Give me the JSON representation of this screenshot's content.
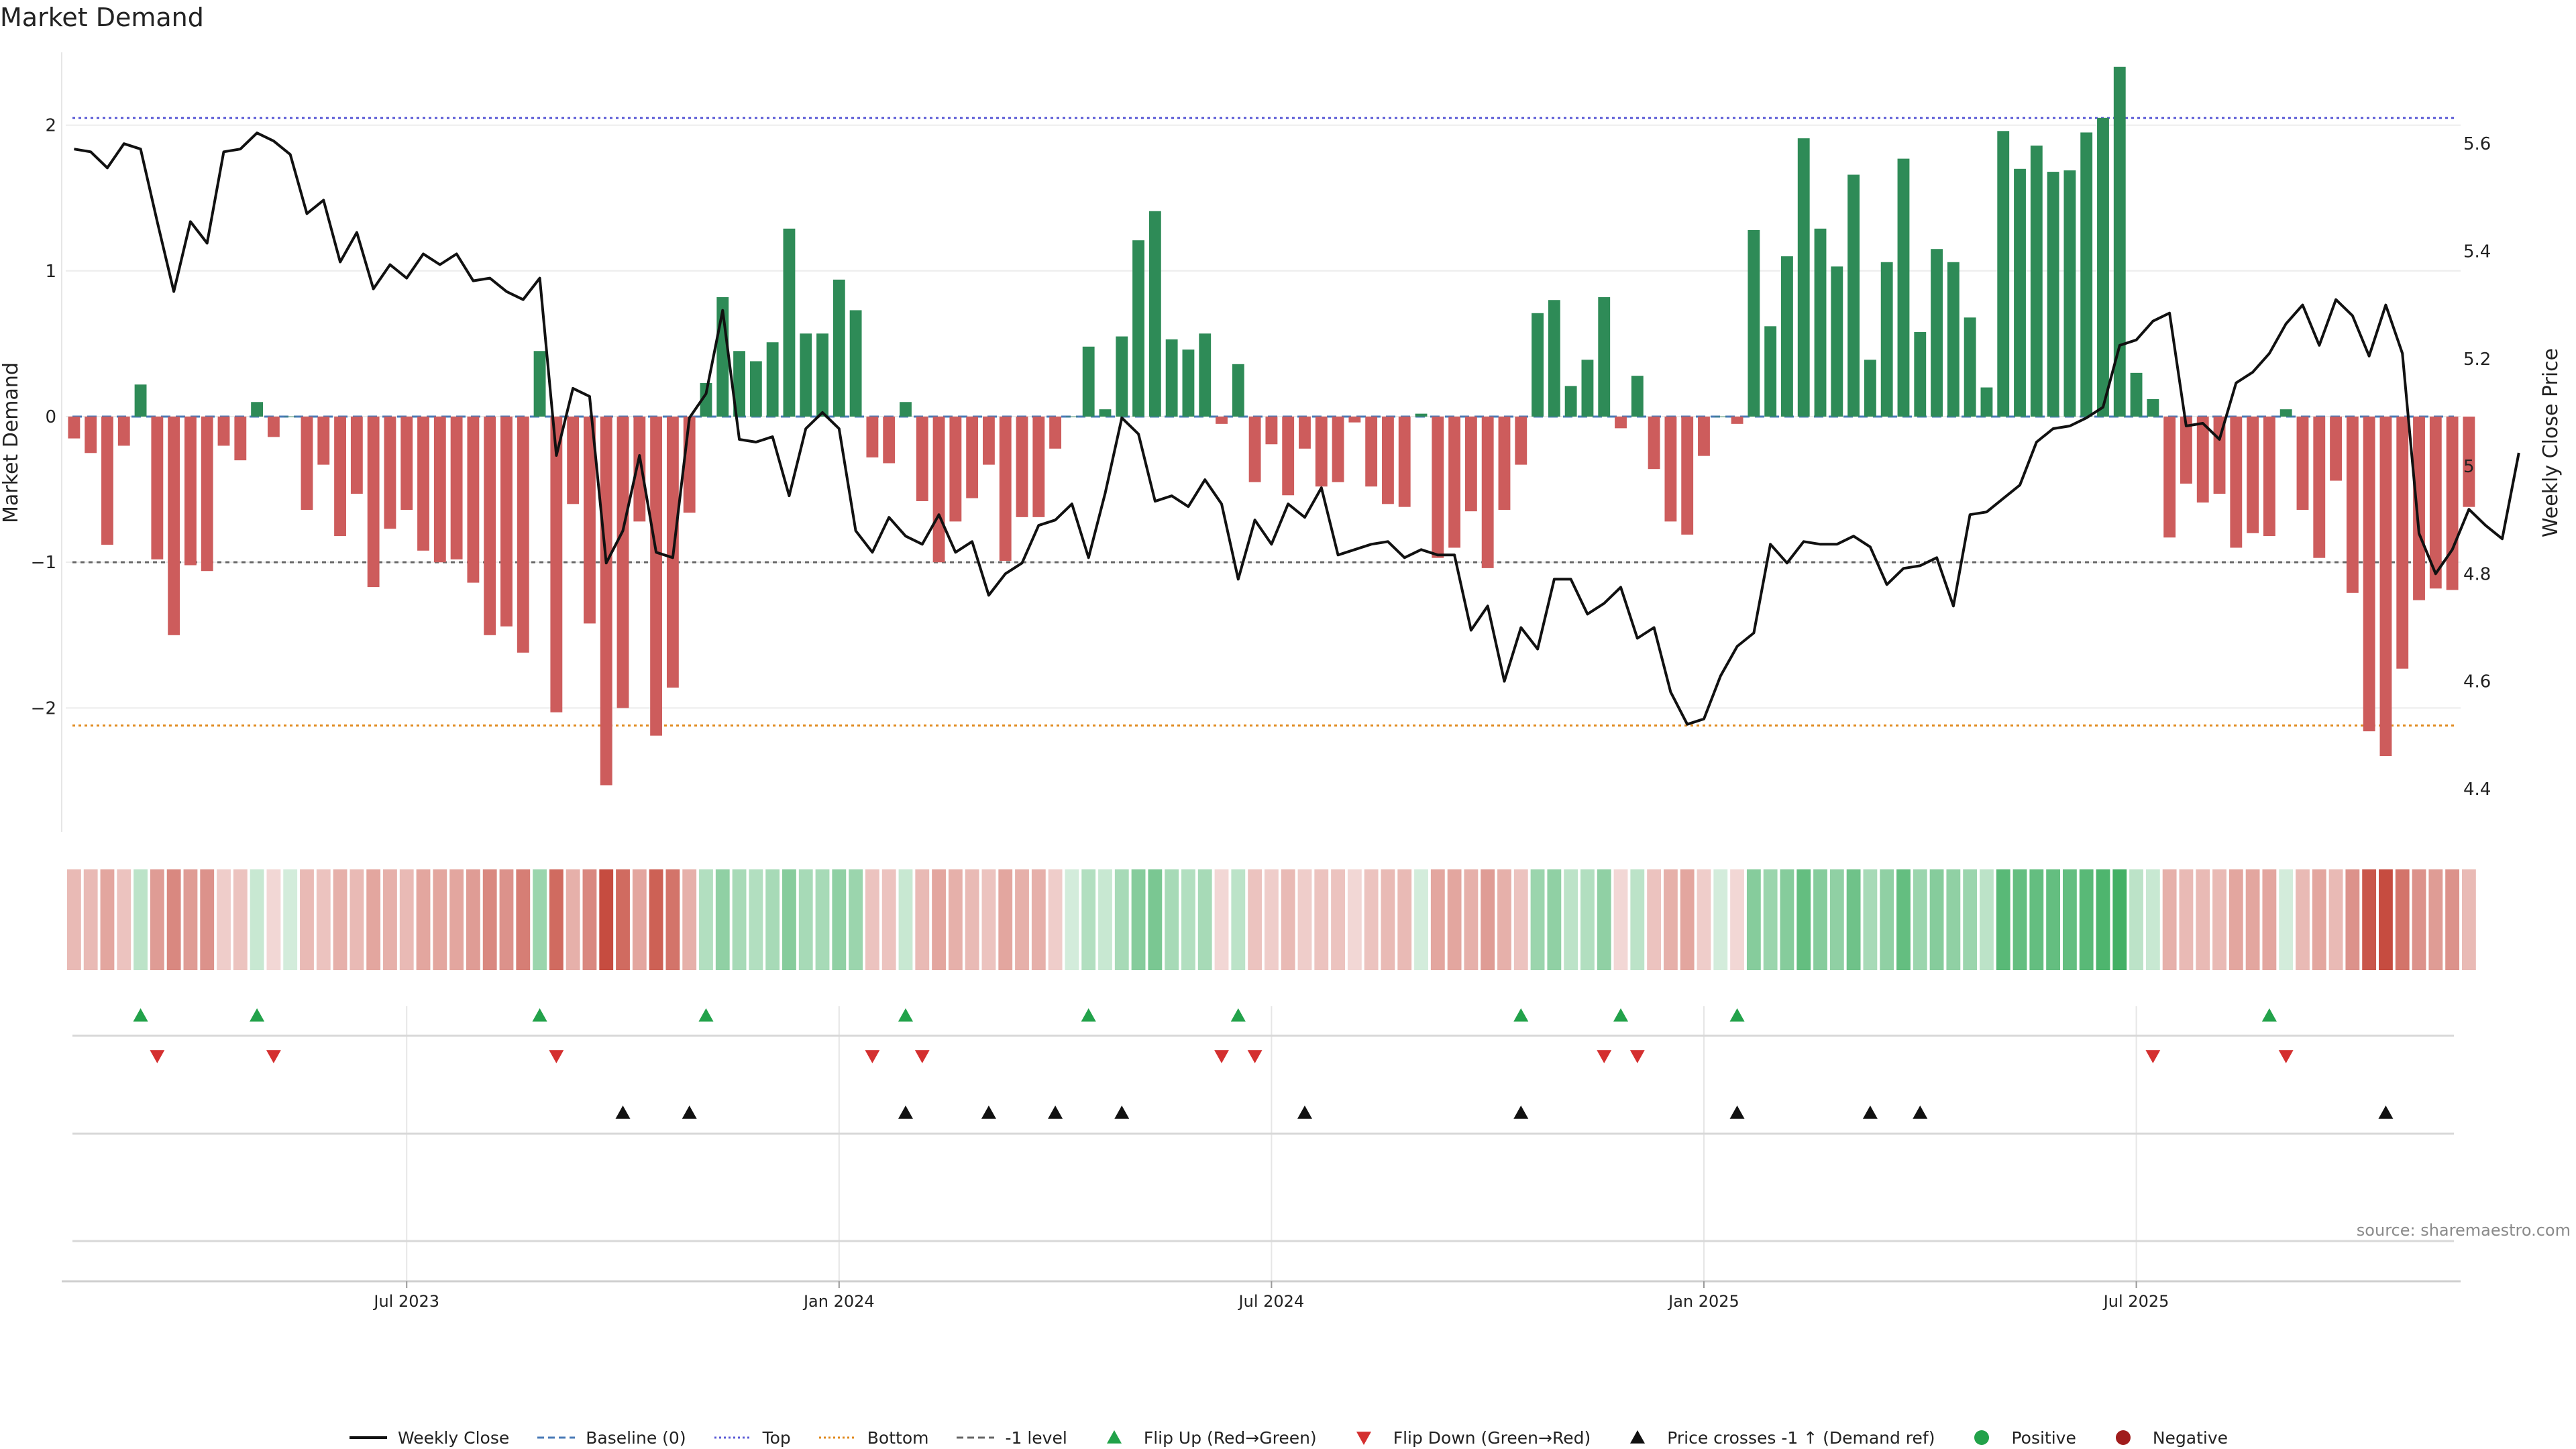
{
  "title": "Market Demand",
  "source": "source: sharemaestro.com",
  "colors": {
    "green": "#2e8b57",
    "red": "#cd5c5c",
    "price": "#111111",
    "top_line": "#5b5bd6",
    "bottom_line": "#e08a1e",
    "minus1_line": "#666666",
    "flip_up": "#22a24a",
    "flip_down": "#d42f2f",
    "cross": "#111111"
  },
  "legend": [
    {
      "label": "Weekly Close",
      "icon": "solid-line"
    },
    {
      "label": "Baseline (0)",
      "icon": "dashed-line"
    },
    {
      "label": "Top",
      "icon": "dotted-line"
    },
    {
      "label": "Bottom",
      "icon": "dotted-line"
    },
    {
      "label": "-1 level",
      "icon": "dashed-line"
    },
    {
      "label": "Flip Up (Red→Green)",
      "icon": "triangle-up"
    },
    {
      "label": "Flip Down (Green→Red)",
      "icon": "triangle-down"
    },
    {
      "label": "Price crosses -1 ↑ (Demand ref)",
      "icon": "triangle-up"
    },
    {
      "label": "Positive",
      "icon": "dot"
    },
    {
      "label": "Negative",
      "icon": "dot"
    }
  ],
  "chart_data": {
    "type": "bar",
    "title": "Market Demand",
    "ylabel": "Market Demand",
    "y2label": "Weekly Close Price",
    "ylim": [
      -2.85,
      2.5
    ],
    "y2lim": [
      4.32,
      5.77
    ],
    "yticks": [
      "2",
      "1",
      "0",
      "−1",
      "−2"
    ],
    "ytick_values": [
      2,
      1,
      0,
      -1,
      -2
    ],
    "y2ticks": [
      "5.6",
      "5.4",
      "5.2",
      "5",
      "4.8",
      "4.6",
      "4.4"
    ],
    "y2tick_values": [
      5.6,
      5.4,
      5.2,
      5.0,
      4.8,
      4.6,
      4.4
    ],
    "xticks": [
      "Jul 2023",
      "Jan 2024",
      "Jul 2024",
      "Jan 2025",
      "Jul 2025"
    ],
    "xtick_weeks": [
      20,
      46,
      72,
      98,
      124
    ],
    "reference_lines": {
      "top": 2.05,
      "bottom": -2.12,
      "minus_one": -1,
      "baseline": 0
    },
    "weeks": 144,
    "demand": [
      -0.15,
      -0.25,
      -0.88,
      -0.2,
      0.22,
      -0.98,
      -1.5,
      -1.02,
      -1.06,
      -0.2,
      -0.3,
      0.1,
      -0.14,
      0.0,
      -0.64,
      -0.33,
      -0.82,
      -0.53,
      -1.17,
      -0.77,
      -0.64,
      -0.92,
      -1.0,
      -0.98,
      -1.14,
      -1.5,
      -1.44,
      -1.62,
      0.45,
      -2.03,
      -0.6,
      -1.42,
      -2.53,
      -2.0,
      -0.72,
      -2.19,
      -1.86,
      -0.66,
      0.23,
      0.82,
      0.45,
      0.38,
      0.51,
      1.29,
      0.57,
      0.57,
      0.94,
      0.73,
      -0.28,
      -0.32,
      0.1,
      -0.58,
      -1.0,
      -0.72,
      -0.56,
      -0.33,
      -0.99,
      -0.69,
      -0.69,
      -0.22,
      0.0,
      0.48,
      0.05,
      0.55,
      1.21,
      1.41,
      0.53,
      0.46,
      0.57,
      -0.05,
      0.36,
      -0.45,
      -0.19,
      -0.54,
      -0.22,
      -0.48,
      -0.45,
      -0.04,
      -0.48,
      -0.6,
      -0.62,
      0.02,
      -0.97,
      -0.9,
      -0.65,
      -1.04,
      -0.64,
      -0.33,
      0.71,
      0.8,
      0.21,
      0.39,
      0.82,
      -0.08,
      0.28,
      -0.36,
      -0.72,
      -0.81,
      -0.27,
      0.0,
      -0.05,
      1.28,
      0.62,
      1.1,
      1.91,
      1.29,
      1.03,
      1.66,
      0.39,
      1.06,
      1.77,
      0.58,
      1.15,
      1.06,
      0.68,
      0.2,
      1.96,
      1.7,
      1.86,
      1.68,
      1.69,
      1.95,
      2.05,
      2.4,
      0.3,
      0.12,
      -0.83,
      -0.46,
      -0.59,
      -0.53,
      -0.9,
      -0.8,
      -0.82,
      0.05,
      -0.64,
      -0.97,
      -0.44,
      -1.21,
      -2.16,
      -2.33,
      -1.73,
      -1.26,
      -1.18,
      -1.19,
      -0.62
    ],
    "price": [
      5.59,
      5.585,
      5.555,
      5.6,
      5.59,
      5.455,
      5.325,
      5.455,
      5.415,
      5.585,
      5.59,
      5.62,
      5.605,
      5.58,
      5.47,
      5.495,
      5.38,
      5.435,
      5.33,
      5.375,
      5.35,
      5.395,
      5.375,
      5.395,
      5.345,
      5.35,
      5.325,
      5.31,
      5.35,
      5.02,
      5.145,
      5.13,
      4.82,
      4.88,
      5.02,
      4.84,
      4.83,
      5.09,
      5.135,
      5.29,
      5.05,
      5.045,
      5.055,
      4.945,
      5.07,
      5.1,
      5.07,
      4.88,
      4.84,
      4.905,
      4.87,
      4.855,
      4.91,
      4.84,
      4.86,
      4.76,
      4.8,
      4.82,
      4.89,
      4.9,
      4.93,
      4.83,
      4.95,
      5.09,
      5.06,
      4.935,
      4.945,
      4.925,
      4.975,
      4.93,
      4.79,
      4.9,
      4.855,
      4.93,
      4.905,
      4.96,
      4.835,
      4.845,
      4.855,
      4.86,
      4.83,
      4.845,
      4.835,
      4.835,
      4.695,
      4.74,
      4.6,
      4.7,
      4.66,
      4.79,
      4.79,
      4.725,
      4.745,
      4.775,
      4.68,
      4.7,
      4.58,
      4.52,
      4.53,
      4.61,
      4.665,
      4.69,
      4.855,
      4.82,
      4.86,
      4.855,
      4.855,
      4.87,
      4.85,
      4.78,
      4.81,
      4.815,
      4.83,
      4.74,
      4.91,
      4.915,
      4.94,
      4.965,
      5.045,
      5.07,
      5.075,
      5.09,
      5.11,
      5.225,
      5.235,
      5.27,
      5.285,
      5.075,
      5.08,
      5.05,
      5.155,
      5.175,
      5.21,
      5.265,
      5.3,
      5.225,
      5.31,
      5.28,
      5.205,
      5.3,
      5.21,
      4.875,
      4.8,
      4.845,
      4.92,
      4.89,
      4.865,
      5.025
    ],
    "heat_alpha": [
      0.35,
      0.35,
      0.45,
      0.3,
      0.3,
      0.5,
      0.6,
      0.5,
      0.55,
      0.25,
      0.3,
      0.25,
      0.2,
      0.2,
      0.35,
      0.3,
      0.4,
      0.35,
      0.45,
      0.4,
      0.35,
      0.45,
      0.45,
      0.45,
      0.5,
      0.6,
      0.55,
      0.65,
      0.45,
      0.75,
      0.4,
      0.6,
      0.9,
      0.75,
      0.45,
      0.8,
      0.7,
      0.4,
      0.35,
      0.5,
      0.4,
      0.35,
      0.4,
      0.55,
      0.4,
      0.4,
      0.5,
      0.45,
      0.3,
      0.3,
      0.25,
      0.35,
      0.45,
      0.4,
      0.35,
      0.3,
      0.45,
      0.4,
      0.4,
      0.25,
      0.2,
      0.35,
      0.25,
      0.4,
      0.55,
      0.6,
      0.4,
      0.35,
      0.4,
      0.2,
      0.3,
      0.3,
      0.25,
      0.35,
      0.25,
      0.3,
      0.3,
      0.2,
      0.3,
      0.35,
      0.35,
      0.2,
      0.45,
      0.45,
      0.4,
      0.5,
      0.4,
      0.3,
      0.45,
      0.5,
      0.3,
      0.35,
      0.5,
      0.2,
      0.3,
      0.3,
      0.4,
      0.45,
      0.25,
      0.2,
      0.2,
      0.55,
      0.45,
      0.55,
      0.7,
      0.55,
      0.5,
      0.65,
      0.4,
      0.5,
      0.7,
      0.45,
      0.55,
      0.5,
      0.45,
      0.3,
      0.75,
      0.7,
      0.7,
      0.7,
      0.7,
      0.75,
      0.8,
      0.85,
      0.3,
      0.25,
      0.4,
      0.35,
      0.35,
      0.35,
      0.45,
      0.45,
      0.45,
      0.2,
      0.35,
      0.45,
      0.35,
      0.55,
      0.85,
      0.9,
      0.7,
      0.55,
      0.5,
      0.55,
      0.35
    ],
    "flip_up_weeks": [
      4,
      11,
      28,
      38,
      50,
      61,
      70,
      87,
      93,
      100,
      132
    ],
    "flip_down_weeks": [
      5,
      12,
      29,
      48,
      51,
      69,
      71,
      92,
      94,
      125,
      133
    ],
    "cross_weeks": [
      33,
      37,
      50,
      55,
      59,
      63,
      74,
      87,
      100,
      108,
      111,
      139
    ]
  }
}
